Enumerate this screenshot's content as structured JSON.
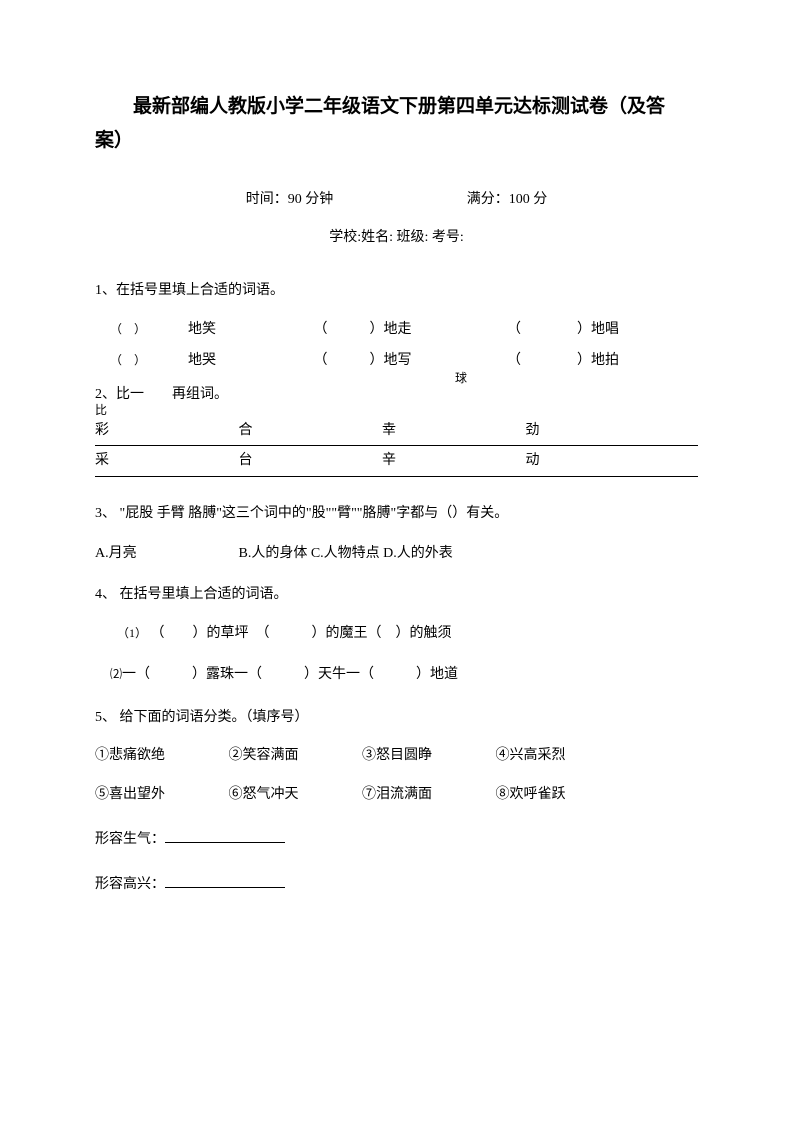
{
  "title_line1": "最新部编人教版小学二年级语文下册第四单元达标测试卷（及答",
  "title_line2": "案）",
  "time_label": "时间：90 分钟",
  "score_label": "满分：100 分",
  "info_fields": "学校:姓名: 班级: 考号:",
  "q1": {
    "prompt": "1、在括号里填上合适的词语。",
    "row1": {
      "c1_pre": "（　）",
      "c1_suf": "地笑",
      "c2_pre": "（　　　）",
      "c2_suf": "地走",
      "c3_pre": "（　　　　）",
      "c3_suf": "地唱"
    },
    "row2": {
      "c1_pre": "（　）",
      "c1_suf": "地哭",
      "c2_pre": "（　　　）",
      "c2_suf": "地写",
      "c3_pre": "（　　　　）",
      "c3_suf": "地拍"
    },
    "extra": "球"
  },
  "q2": {
    "prompt": "2、比一　　再组词。",
    "bi": "比",
    "row1": {
      "c1": "彩",
      "c2": "合",
      "c3": "幸",
      "c4": "劲"
    },
    "row2": {
      "c1": "采",
      "c2": "台",
      "c3": "辛",
      "c4": "动"
    }
  },
  "q3": {
    "prompt": "3、 \"屁股 手臂 胳膊\"这三个词中的\"股\"\"臂\"\"胳膊\"字都与（）有关。",
    "opt_a": "A.月亮",
    "opt_rest": "B.人的身体 C.人物特点 D.人的外表"
  },
  "q4": {
    "prompt": "4、 在括号里填上合适的词语。",
    "sub1_num": "（1）",
    "sub1_text": "（　　）的草坪　（　　　）的魔王（　）的触须",
    "sub2_num": "⑵",
    "sub2_text": "一（　　　）露珠一（　　　）天牛一（　　　）地道"
  },
  "q5": {
    "prompt": "5、 给下面的词语分类。（填序号）",
    "items": {
      "i1": "①悲痛欲绝",
      "i2": "②笑容满面",
      "i3": "③怒目圆睁",
      "i4": "④兴高采烈",
      "i5": "⑤喜出望外",
      "i6": "⑥怒气冲天",
      "i7": "⑦泪流满面",
      "i8": "⑧欢呼雀跃"
    },
    "ans1": "形容生气：",
    "ans2": "形容高兴："
  }
}
